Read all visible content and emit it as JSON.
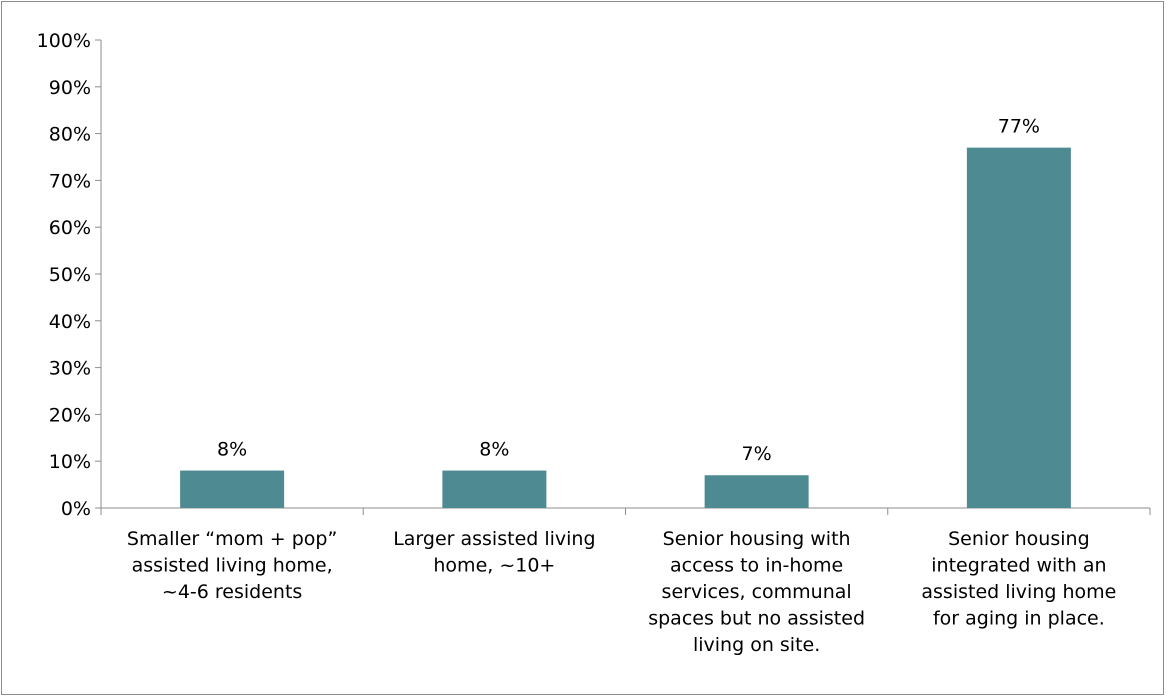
{
  "chart_data": {
    "type": "bar",
    "title": "",
    "xlabel": "",
    "ylabel": "",
    "ylim": [
      0,
      100
    ],
    "y_ticks": [
      0,
      10,
      20,
      30,
      40,
      50,
      60,
      70,
      80,
      90,
      100
    ],
    "y_tick_suffix": "%",
    "grid": false,
    "legend": "none",
    "bar_color": "#4e8a91",
    "categories": [
      "Smaller “mom + pop” assisted living home, ~4-6 residents",
      "Larger assisted living home, ~10+",
      "Senior housing with access to in-home services, communal spaces but no assisted living on site.",
      "Senior housing integrated with an assisted living home for aging in place."
    ],
    "category_lines": [
      [
        "Smaller “mom + pop”",
        "assisted living home,",
        "~4-6 residents"
      ],
      [
        "Larger assisted living",
        "home, ~10+"
      ],
      [
        "Senior housing with",
        "access to in-home",
        "services, communal",
        "spaces but no assisted",
        "living on site."
      ],
      [
        "Senior housing",
        "integrated with an",
        "assisted living home",
        "for aging in place."
      ]
    ],
    "values": [
      8,
      8,
      7,
      77
    ],
    "data_labels": [
      "8%",
      "8%",
      "7%",
      "77%"
    ]
  }
}
